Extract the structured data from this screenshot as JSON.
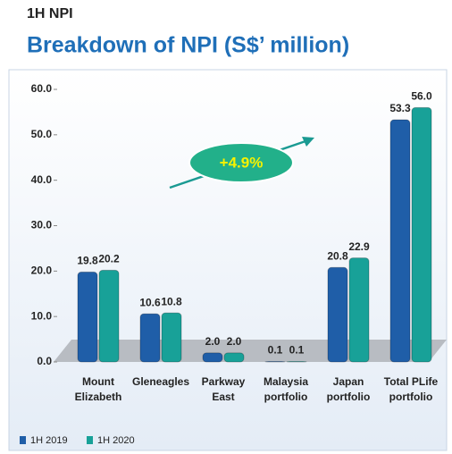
{
  "chart_data": {
    "type": "bar",
    "supertitle": "1H NPI",
    "title": "Breakdown of NPI (S$’ million)",
    "annotation": "+4.9%",
    "categories": [
      "Mount Elizabeth",
      "Gleneagles",
      "Parkway East",
      "Malaysia portfolio",
      "Japan portfolio",
      "Total PLife portfolio"
    ],
    "series": [
      {
        "name": "1H 2019",
        "color": "#1f5ea8",
        "values": [
          19.8,
          10.6,
          2,
          0.1,
          20.8,
          53.3
        ],
        "value_labels": [
          "19.8",
          "10.6",
          "2.0",
          "0.1",
          "20.8",
          "53.3"
        ]
      },
      {
        "name": "1H 2020",
        "color": "#18a198",
        "values": [
          20.2,
          10.8,
          2,
          0.1,
          22.9,
          56
        ],
        "value_labels": [
          "20.2",
          "10.8",
          "2.0",
          "0.1",
          "22.9",
          "56.0"
        ]
      }
    ],
    "ylim": [
      0,
      60
    ],
    "yticks": [
      {
        "value": 0,
        "label": "0.0"
      },
      {
        "value": 10,
        "label": "10.0"
      },
      {
        "value": 20,
        "label": "20.0"
      },
      {
        "value": 30,
        "label": "30.0"
      },
      {
        "value": 40,
        "label": "40.0"
      },
      {
        "value": 50,
        "label": "50.0"
      },
      {
        "value": 60,
        "label": "60.0"
      }
    ],
    "legend": "bottom-left"
  }
}
